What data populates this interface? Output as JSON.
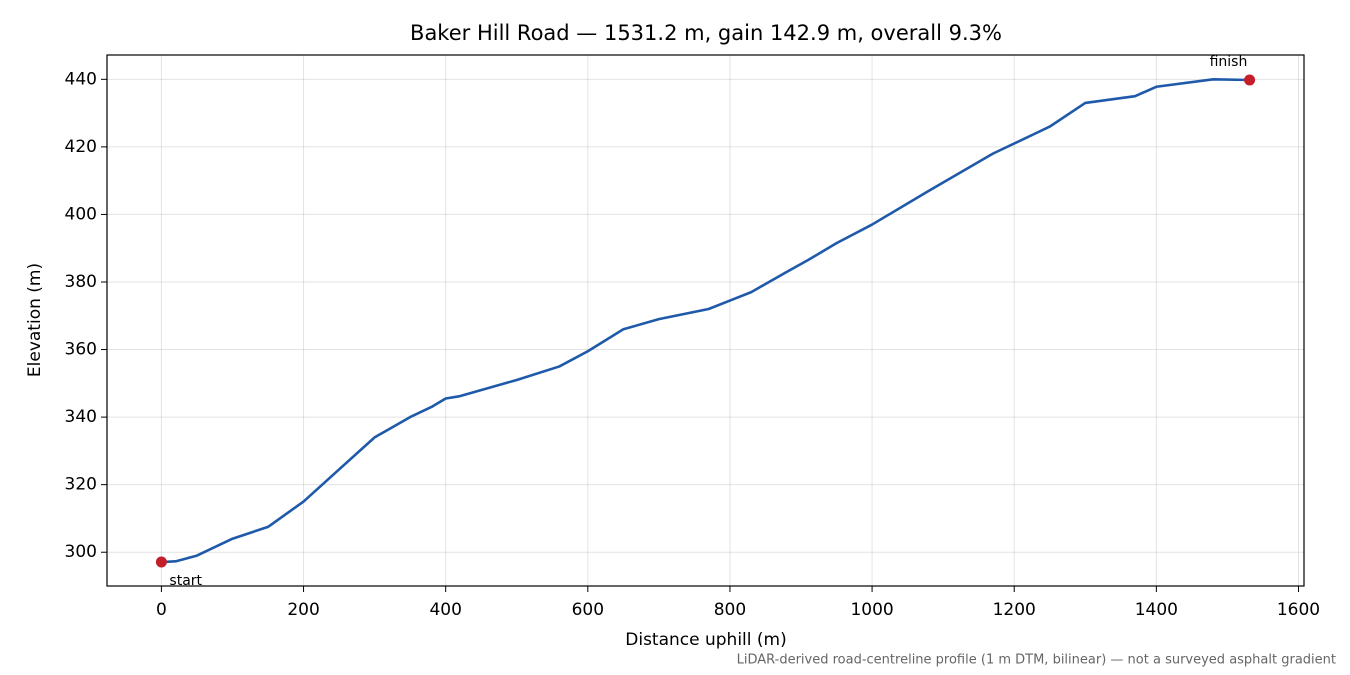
{
  "chart_data": {
    "type": "line",
    "title": "Baker Hill Road — 1531.2 m, gain 142.9 m, overall 9.3%",
    "x_label": "Distance uphill (m)",
    "y_label": "Elevation (m)",
    "footnote": "LiDAR-derived road-centreline profile (1 m DTM, bilinear) — not a surveyed asphalt gradient",
    "x": [
      0,
      20,
      50,
      80,
      100,
      150,
      200,
      250,
      300,
      350,
      380,
      400,
      420,
      500,
      560,
      600,
      650,
      700,
      770,
      800,
      830,
      880,
      910,
      950,
      1000,
      1080,
      1170,
      1250,
      1300,
      1370,
      1400,
      1480,
      1531.2
    ],
    "series": [
      {
        "color": "#1f5aaa",
        "values": [
          297.1,
          297.3,
          299,
          302,
          304,
          307.5,
          315,
          324.5,
          334,
          340,
          343,
          345.5,
          346.2,
          351,
          355,
          359.5,
          366,
          369,
          372,
          374.5,
          377,
          383,
          386.5,
          391.5,
          397,
          407,
          418,
          426,
          433,
          435,
          437.8,
          440,
          439.8
        ]
      }
    ],
    "markers": [
      {
        "label": "start",
        "x": 0,
        "y": 297.1,
        "color": "#c41e2a"
      },
      {
        "label": "finish",
        "x": 1531.2,
        "y": 439.8,
        "color": "#c41e2a"
      }
    ],
    "xlim": [
      -76.56,
      1607.76
    ],
    "ylim": [
      290,
      447.2
    ],
    "xticks": [
      0,
      200,
      400,
      600,
      800,
      1000,
      1200,
      1400,
      1600
    ],
    "yticks": [
      300,
      320,
      340,
      360,
      380,
      400,
      420,
      440
    ],
    "grid": true
  }
}
